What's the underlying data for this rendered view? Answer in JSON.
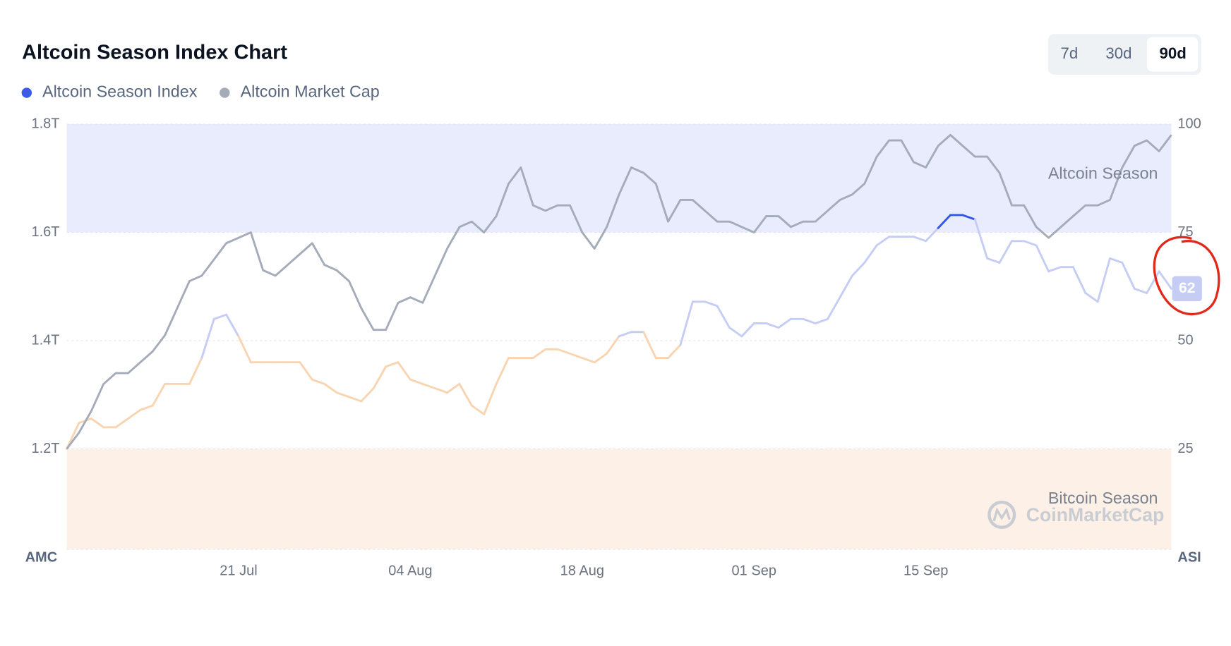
{
  "chart_data": {
    "type": "line",
    "title": "Altcoin Season Index Chart",
    "controls": {
      "ranges": [
        "7d",
        "30d",
        "90d"
      ],
      "active": 2
    },
    "y_label": "AMC",
    "y2_label": "ASI",
    "watermark": "CoinMarketCap",
    "categories": [
      null,
      null,
      null,
      null,
      null,
      null,
      null,
      null,
      null,
      null,
      null,
      null,
      null,
      null,
      "21 Jul",
      null,
      null,
      null,
      null,
      null,
      null,
      null,
      null,
      null,
      null,
      null,
      null,
      null,
      "04 Aug",
      null,
      null,
      null,
      null,
      null,
      null,
      null,
      null,
      null,
      null,
      null,
      null,
      null,
      "18 Aug",
      null,
      null,
      null,
      null,
      null,
      null,
      null,
      null,
      null,
      null,
      null,
      null,
      null,
      "01 Sep",
      null,
      null,
      null,
      null,
      null,
      null,
      null,
      null,
      null,
      null,
      null,
      null,
      null,
      "15 Sep",
      null,
      null,
      null,
      null,
      null,
      null,
      null,
      null,
      null,
      null,
      null,
      null,
      null,
      null,
      null,
      null,
      null,
      null,
      null,
      null
    ],
    "series": [
      {
        "name": "Altcoin Season Index",
        "color": "#3b5ce8",
        "axis": "y2",
        "zone_colors": [
          {
            "min": 75,
            "color": "#3156e8"
          },
          {
            "min": 50,
            "color": "#c6cdf4"
          },
          {
            "min": 0,
            "color": "#f8d5b0"
          }
        ],
        "values": [
          25,
          31,
          32,
          30,
          30,
          32,
          34,
          35,
          40,
          40,
          40,
          46,
          55,
          56,
          51,
          45,
          45,
          45,
          45,
          45,
          41,
          40,
          38,
          37,
          36,
          39,
          44,
          45,
          41,
          40,
          39,
          38,
          40,
          35,
          33,
          40,
          46,
          46,
          46,
          48,
          48,
          47,
          46,
          45,
          47,
          51,
          52,
          52,
          46,
          46,
          49,
          59,
          59,
          58,
          53,
          51,
          54,
          54,
          53,
          55,
          55,
          54,
          55,
          60,
          65,
          68,
          72,
          74,
          74,
          74,
          73,
          76,
          79,
          79,
          78,
          69,
          68,
          73,
          73,
          72,
          66,
          67,
          67,
          61,
          59,
          69,
          68,
          62,
          61,
          66,
          62
        ]
      },
      {
        "name": "Altcoin Market Cap",
        "color": "#a4abb9",
        "axis": "y",
        "values": [
          1.2,
          1.23,
          1.27,
          1.32,
          1.34,
          1.34,
          1.36,
          1.38,
          1.41,
          1.46,
          1.51,
          1.52,
          1.55,
          1.58,
          1.59,
          1.6,
          1.53,
          1.52,
          1.54,
          1.56,
          1.58,
          1.54,
          1.53,
          1.51,
          1.46,
          1.42,
          1.42,
          1.47,
          1.48,
          1.47,
          1.52,
          1.57,
          1.61,
          1.62,
          1.6,
          1.63,
          1.69,
          1.72,
          1.65,
          1.64,
          1.65,
          1.65,
          1.6,
          1.57,
          1.61,
          1.67,
          1.72,
          1.71,
          1.69,
          1.62,
          1.66,
          1.66,
          1.64,
          1.62,
          1.62,
          1.61,
          1.6,
          1.63,
          1.63,
          1.61,
          1.62,
          1.62,
          1.64,
          1.66,
          1.67,
          1.69,
          1.74,
          1.77,
          1.77,
          1.73,
          1.72,
          1.76,
          1.78,
          1.76,
          1.74,
          1.74,
          1.71,
          1.65,
          1.65,
          1.61,
          1.59,
          1.61,
          1.63,
          1.65,
          1.65,
          1.66,
          1.72,
          1.76,
          1.77,
          1.75,
          1.78
        ]
      }
    ],
    "bands": [
      {
        "label": "Altcoin Season",
        "from": 75,
        "to": 100,
        "color": "#e9ecfc"
      },
      {
        "label": "Bitcoin Season",
        "from": 0,
        "to": 25,
        "color": "#fdf1e7"
      }
    ],
    "ylim": [
      1.0,
      1.8
    ],
    "yticks": [
      {
        "value": 1.2,
        "label": "1.2T"
      },
      {
        "value": 1.4,
        "label": "1.4T"
      },
      {
        "value": 1.6,
        "label": "1.6T"
      },
      {
        "value": 1.8,
        "label": "1.8T"
      }
    ],
    "y2lim": [
      0,
      100
    ],
    "y2ticks": [
      25,
      50,
      75,
      100
    ],
    "grid": true
  }
}
